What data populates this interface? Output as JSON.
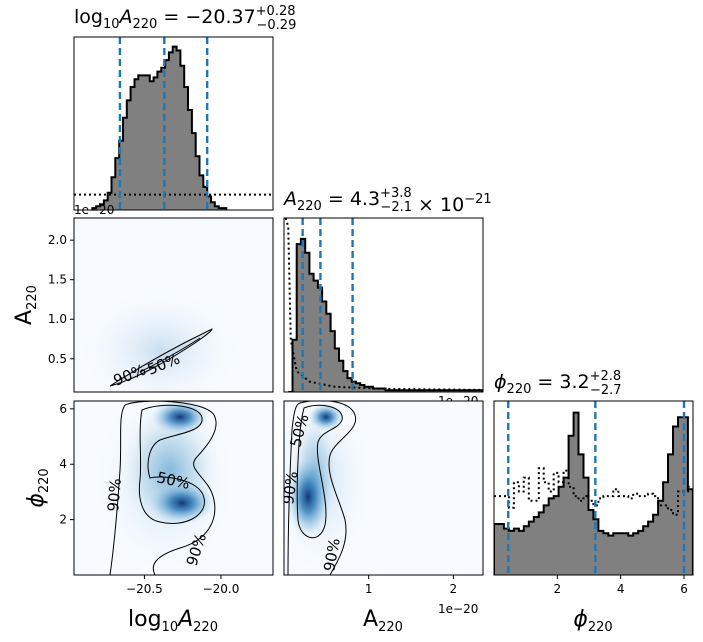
{
  "chart_data": [
    {
      "type": "histogram",
      "panel": "log10A220-marginal",
      "title": {
        "base": "log",
        "sub1": "10",
        "mid": "A",
        "sub2": "220",
        "eq": " = −20.37",
        "sup": "+0.28",
        "subv": "−0.29"
      },
      "offset_label": "1e−20",
      "xlim": [
        -20.96,
        -19.66
      ],
      "quantiles": [
        -20.66,
        -20.37,
        -20.09
      ],
      "bin_edges_start": -20.84,
      "bin_width": 0.025,
      "heights": [
        1,
        2,
        3,
        5,
        9,
        17,
        27,
        36,
        48,
        57,
        64,
        68,
        70,
        70,
        70,
        67,
        69,
        72,
        74,
        78,
        82,
        85,
        83,
        75,
        64,
        52,
        40,
        28,
        18,
        12,
        7,
        4,
        2,
        1,
        1
      ],
      "ymax": 90,
      "prior_level": 8
    },
    {
      "type": "histogram",
      "panel": "A220-marginal",
      "title": {
        "mid": "A",
        "sub2": "220",
        "eq": " = 4.3",
        "sup": "+3.8",
        "subv": "−2.1",
        "tail": " × 10",
        "exp": "−21"
      },
      "offset_label": "1e−20",
      "xlim": [
        0.0,
        2.35
      ],
      "xticks": [
        1,
        2
      ],
      "quantiles": [
        0.22,
        0.43,
        0.81
      ],
      "bin_edges_start": 0.05,
      "bin_width": 0.05,
      "heights": [
        0,
        30,
        85,
        88,
        80,
        68,
        64,
        60,
        52,
        45,
        35,
        25,
        18,
        12,
        8,
        6,
        5,
        4,
        3,
        3,
        2,
        2,
        2,
        1,
        1,
        1,
        1,
        1,
        1,
        1,
        1,
        1,
        1,
        1,
        1,
        1,
        1,
        1,
        1,
        1,
        1,
        1,
        1,
        1,
        1,
        1
      ],
      "ymax": 100,
      "prior_level": 80
    },
    {
      "type": "histogram",
      "panel": "phi220-marginal",
      "title": {
        "phi": "ϕ",
        "sub2": "220",
        "eq": " = 3.2",
        "sup": "+2.8",
        "subv": "−2.7"
      },
      "xlim": [
        0.0,
        6.2832
      ],
      "xticks": [
        2,
        4,
        6
      ],
      "quantiles": [
        0.45,
        3.2,
        6.0
      ],
      "bin_edges_start": 0,
      "bin_width": 0.157,
      "heights": [
        22,
        22,
        20,
        19,
        20,
        19,
        21,
        23,
        25,
        27,
        30,
        33,
        34,
        38,
        42,
        60,
        70,
        52,
        42,
        28,
        24,
        19,
        18,
        17,
        18,
        18,
        18,
        17,
        18,
        19,
        21,
        23,
        26,
        32,
        40,
        52,
        64,
        68,
        68,
        37
      ],
      "ymax": 75,
      "prior": [
        34,
        34,
        34,
        29,
        40,
        36,
        42,
        32,
        32,
        46,
        40,
        36,
        44,
        40,
        45,
        38,
        34,
        32,
        34,
        32,
        30,
        33,
        34,
        34,
        37,
        34,
        34,
        33,
        35,
        34,
        34,
        35,
        34,
        30,
        30,
        28,
        26,
        36,
        36,
        38
      ]
    },
    {
      "type": "contour",
      "panel": "log10A220-vs-A220",
      "ylabel": {
        "base": "A",
        "sub": "220"
      },
      "xlim": [
        -20.96,
        -19.66
      ],
      "ylim": [
        0.08,
        2.28
      ],
      "yticks": [
        0.5,
        1.0,
        1.5,
        2.0
      ],
      "ytick_labels": [
        "0.5",
        "1.0",
        "1.5",
        "2.0"
      ],
      "contour_labels": [
        "90%",
        "50%"
      ]
    },
    {
      "type": "contour",
      "panel": "log10A220-vs-phi220",
      "xlabel": {
        "base": "log",
        "sub1": "10",
        "mid": "A",
        "sub2": "220"
      },
      "ylabel": {
        "phi": "ϕ",
        "sub": "220"
      },
      "xlim": [
        -20.96,
        -19.66
      ],
      "ylim": [
        0.0,
        6.2832
      ],
      "xticks": [
        -20.5,
        -20.0
      ],
      "xtick_labels": [
        "−20.5",
        "−20.0"
      ],
      "yticks": [
        2,
        4,
        6
      ],
      "ytick_labels": [
        "2",
        "4",
        "6"
      ],
      "contour_labels": [
        "50%",
        "90%",
        "90%"
      ]
    },
    {
      "type": "contour",
      "panel": "A220-vs-phi220",
      "xlabel": {
        "base": "A",
        "sub": "220"
      },
      "offset_label": "1e−20",
      "xlim": [
        0.0,
        2.35
      ],
      "ylim": [
        0.0,
        6.2832
      ],
      "xticks": [
        1,
        2
      ],
      "xtick_labels": [
        "1",
        "2"
      ],
      "contour_labels": [
        "50%",
        "90%",
        "90%"
      ]
    },
    {
      "type": "axis-label",
      "panel": "phi220-bottom",
      "xlabel": {
        "phi": "ϕ",
        "sub": "220"
      },
      "xtick_labels": [
        "2",
        "4",
        "6"
      ]
    }
  ],
  "colors": {
    "hist_fill": "#808080",
    "quantile": "#1f77b4",
    "density_dark": "#08519c",
    "density_light": "#deebf7"
  }
}
